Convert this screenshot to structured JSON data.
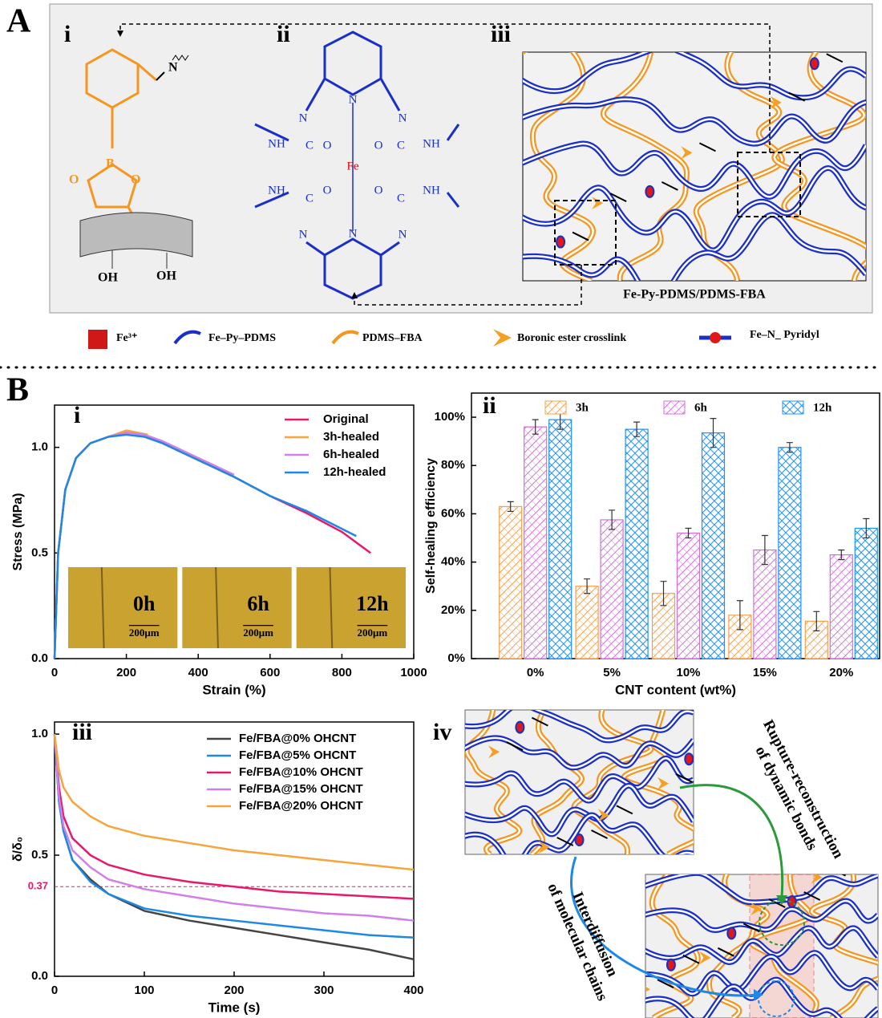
{
  "panel_a": {
    "label": "A",
    "sub_labels": [
      "i",
      "ii",
      "iii"
    ],
    "caption": "Fe-Py-PDMS/PDMS-FBA",
    "molecule_i": [
      "N",
      "B",
      "O",
      "O",
      "OH",
      "OH"
    ],
    "molecule_ii": [
      "N",
      "N",
      "N",
      "N",
      "N",
      "N",
      "C",
      "C",
      "C",
      "C",
      "NH",
      "NH",
      "NH",
      "NH",
      "O",
      "O",
      "O",
      "O",
      "Fe"
    ]
  },
  "legend": [
    "Fe³⁺",
    "Fe–Py–PDMS",
    "PDMS–FBA",
    "Boronic ester crosslink",
    "Fe–N_ Pyridyl"
  ],
  "panel_b": {
    "label": "B",
    "sub_labels": [
      "i",
      "ii",
      "iii",
      "iv"
    ],
    "annotations": [
      [
        "Rupture-reconstruction",
        "of dynamic bonds"
      ],
      [
        "Interdiffusion",
        "of molecular chains"
      ]
    ]
  },
  "chart_data": [
    {
      "type": "line",
      "x_label": "Strain (%)",
      "y_label": "Stress (MPa)",
      "xlim": [
        0,
        1000
      ],
      "xticks": [
        0,
        200,
        400,
        600,
        800,
        1000
      ],
      "ylim": [
        0,
        1.2
      ],
      "yticks": [
        {
          "value": 0,
          "label": "0.0"
        },
        0.5,
        {
          "value": 1,
          "label": "1.0"
        }
      ],
      "legend": "upper right",
      "series": [
        {
          "name": "Original",
          "color": "#e8186d",
          "x": [
            0,
            10,
            30,
            60,
            100,
            150,
            200,
            250,
            300,
            400,
            500,
            600,
            700,
            800,
            880
          ],
          "values": [
            0,
            0.5,
            0.8,
            0.95,
            1.02,
            1.05,
            1.07,
            1.06,
            1.02,
            0.94,
            0.86,
            0.77,
            0.69,
            0.6,
            0.5
          ]
        },
        {
          "name": "3h-healed",
          "color": "#f5a53c",
          "x": [
            0,
            10,
            30,
            60,
            100,
            150,
            200,
            260
          ],
          "values": [
            0,
            0.5,
            0.8,
            0.95,
            1.02,
            1.05,
            1.08,
            1.06
          ]
        },
        {
          "name": "6h-healed",
          "color": "#d080e8",
          "x": [
            0,
            10,
            30,
            60,
            100,
            150,
            200,
            250,
            300,
            400,
            500
          ],
          "values": [
            0,
            0.5,
            0.8,
            0.95,
            1.02,
            1.05,
            1.07,
            1.06,
            1.03,
            0.95,
            0.87
          ]
        },
        {
          "name": "12h-healed",
          "color": "#1e88e5",
          "x": [
            0,
            10,
            30,
            60,
            100,
            150,
            200,
            250,
            300,
            400,
            500,
            600,
            700,
            840
          ],
          "values": [
            0,
            0.5,
            0.8,
            0.95,
            1.02,
            1.05,
            1.06,
            1.05,
            1.02,
            0.94,
            0.86,
            0.77,
            0.7,
            0.58
          ]
        }
      ],
      "insets": [
        {
          "label": "0h",
          "scale": "200μm"
        },
        {
          "label": "6h",
          "scale": "200μm"
        },
        {
          "label": "12h",
          "scale": "200μm"
        }
      ]
    },
    {
      "type": "bar",
      "x_label": "CNT content (wt%)",
      "y_label": "Self-healing efficiency",
      "categories": [
        "0%",
        "5%",
        "10%",
        "15%",
        "20%"
      ],
      "ylim": [
        0,
        110
      ],
      "yticks": [
        {
          "value": 0,
          "label": "0%"
        },
        {
          "value": 20,
          "label": "20%"
        },
        {
          "value": 40,
          "label": "40%"
        },
        {
          "value": 60,
          "label": "60%"
        },
        {
          "value": 80,
          "label": "80%"
        },
        {
          "value": 100,
          "label": "100%"
        }
      ],
      "legend": "upper center",
      "series": [
        {
          "name": "3h",
          "color": "#f5a04a",
          "values": [
            63,
            30,
            27,
            18,
            15.5
          ],
          "errors": [
            2,
            3,
            5,
            6,
            4
          ]
        },
        {
          "name": "6h",
          "color": "#d070d8",
          "values": [
            96,
            57.5,
            52,
            45,
            43
          ],
          "errors": [
            3,
            4,
            2,
            6,
            2
          ]
        },
        {
          "name": "12h",
          "color": "#1e90ff",
          "values": [
            99,
            95,
            93.5,
            87.5,
            54
          ],
          "errors": [
            4,
            3,
            6,
            2,
            4
          ]
        }
      ]
    },
    {
      "type": "line",
      "x_label": "Time (s)",
      "y_label": "δ/δ₀",
      "xlim": [
        0,
        400
      ],
      "xticks": [
        0,
        100,
        200,
        300,
        400
      ],
      "ylim": [
        0,
        1.05
      ],
      "yticks": [
        {
          "value": 0,
          "label": "0.0"
        },
        0.5,
        {
          "value": 1,
          "label": "1.0"
        }
      ],
      "reference_line": {
        "value": 0.37,
        "label": "0.37"
      },
      "legend": "upper right",
      "series": [
        {
          "name": "Fe/FBA@0% OHCNT",
          "color": "#444444",
          "x": [
            0,
            5,
            10,
            20,
            40,
            60,
            100,
            150,
            200,
            250,
            300,
            350,
            400
          ],
          "values": [
            1,
            0.72,
            0.6,
            0.48,
            0.4,
            0.34,
            0.27,
            0.23,
            0.2,
            0.17,
            0.14,
            0.11,
            0.07
          ]
        },
        {
          "name": "Fe/FBA@5% OHCNT",
          "color": "#1e88e5",
          "x": [
            0,
            5,
            10,
            20,
            40,
            60,
            100,
            150,
            200,
            250,
            300,
            350,
            400
          ],
          "values": [
            1,
            0.72,
            0.6,
            0.48,
            0.39,
            0.34,
            0.28,
            0.25,
            0.23,
            0.21,
            0.19,
            0.17,
            0.16
          ]
        },
        {
          "name": "Fe/FBA@10% OHCNT",
          "color": "#e8186d",
          "x": [
            0,
            5,
            10,
            20,
            40,
            60,
            100,
            150,
            200,
            250,
            300,
            350,
            400
          ],
          "values": [
            1,
            0.78,
            0.66,
            0.57,
            0.5,
            0.46,
            0.42,
            0.39,
            0.37,
            0.35,
            0.34,
            0.33,
            0.32
          ]
        },
        {
          "name": "Fe/FBA@15% OHCNT",
          "color": "#d080e8",
          "x": [
            0,
            5,
            10,
            20,
            40,
            60,
            100,
            150,
            200,
            250,
            300,
            350,
            400
          ],
          "values": [
            1,
            0.74,
            0.62,
            0.52,
            0.45,
            0.4,
            0.36,
            0.33,
            0.3,
            0.28,
            0.26,
            0.25,
            0.23
          ]
        },
        {
          "name": "Fe/FBA@20% OHCNT",
          "color": "#f5a53c",
          "x": [
            0,
            5,
            10,
            20,
            40,
            60,
            100,
            150,
            200,
            250,
            300,
            350,
            400
          ],
          "values": [
            1,
            0.85,
            0.78,
            0.72,
            0.66,
            0.62,
            0.58,
            0.55,
            0.52,
            0.5,
            0.48,
            0.46,
            0.44
          ]
        }
      ]
    }
  ]
}
